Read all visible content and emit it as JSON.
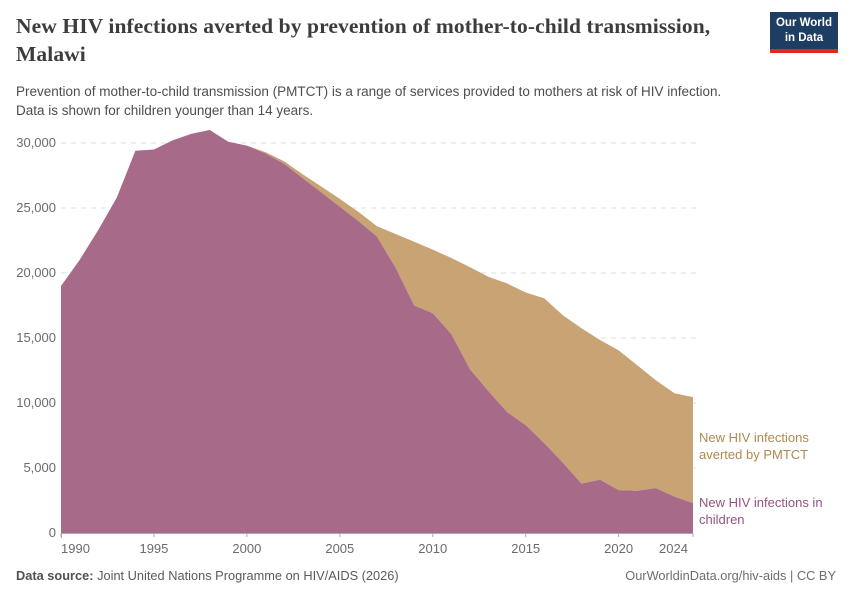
{
  "header": {
    "title": "New HIV infections averted by prevention of mother-to-child transmission, Malawi",
    "subtitle": [
      "Prevention of mother-to-child transmission (PMTCT) is a range of services provided to mothers at risk of HIV infection.",
      "Data is shown for children younger than 14 years."
    ],
    "logo": {
      "line1": "Our World",
      "line2": "in Data",
      "bg_color": "#1d3d63",
      "accent_color": "#dc2c1e"
    }
  },
  "chart_data": {
    "type": "area",
    "stacked": true,
    "title": "New HIV infections averted by prevention of mother-to-child transmission, Malawi",
    "xlabel": "",
    "ylabel": "",
    "xlim": [
      1990,
      2024
    ],
    "ylim": [
      0,
      31000
    ],
    "grid": "dashed-horizontal",
    "legend_position": "right-of-plot",
    "x": [
      1990,
      1991,
      1992,
      1993,
      1994,
      1995,
      1996,
      1997,
      1998,
      1999,
      2000,
      2001,
      2002,
      2003,
      2004,
      2005,
      2006,
      2007,
      2008,
      2009,
      2010,
      2011,
      2012,
      2013,
      2014,
      2015,
      2016,
      2017,
      2018,
      2019,
      2020,
      2021,
      2022,
      2023,
      2024
    ],
    "series": [
      {
        "name": "New HIV infections in children",
        "color": "#A76B89",
        "label_color": "#955380",
        "values": [
          19000,
          21000,
          23300,
          25800,
          29400,
          29500,
          30200,
          30700,
          31000,
          30100,
          29800,
          29200,
          28400,
          27300,
          26200,
          25100,
          24000,
          22800,
          20400,
          17500,
          16900,
          15300,
          12600,
          10900,
          9300,
          8300,
          6900,
          5400,
          3800,
          4100,
          3300,
          3250,
          3450,
          2800,
          2300
        ]
      },
      {
        "name": "New HIV infections averted by PMTCT",
        "color": "#C8A474",
        "label_color": "#B0894E",
        "values": [
          0,
          0,
          0,
          0,
          0,
          0,
          0,
          0,
          0,
          0,
          0,
          100,
          200,
          300,
          450,
          600,
          700,
          800,
          2600,
          4900,
          4900,
          5850,
          7850,
          8800,
          9900,
          10200,
          11150,
          11350,
          11950,
          10750,
          10750,
          9650,
          8300,
          7950,
          8150
        ]
      }
    ],
    "yticks": [
      0,
      5000,
      10000,
      15000,
      20000,
      25000,
      30000
    ],
    "ytick_labels": [
      "0",
      "5,000",
      "10,000",
      "15,000",
      "20,000",
      "25,000",
      "30,000"
    ],
    "xticks": [
      1990,
      1995,
      2000,
      2005,
      2010,
      2015,
      2020,
      2024
    ],
    "xtick_labels": [
      "1990",
      "1995",
      "2000",
      "2005",
      "2010",
      "2015",
      "2020",
      "2024"
    ]
  },
  "annotations": {
    "averted_label": "New HIV infections averted by PMTCT",
    "children_label": "New HIV infections in children"
  },
  "footer": {
    "source_label": "Data source:",
    "source_text": " Joint United Nations Programme on HIV/AIDS (2026)",
    "credit": "OurWorldinData.org/hiv-aids | CC BY"
  }
}
